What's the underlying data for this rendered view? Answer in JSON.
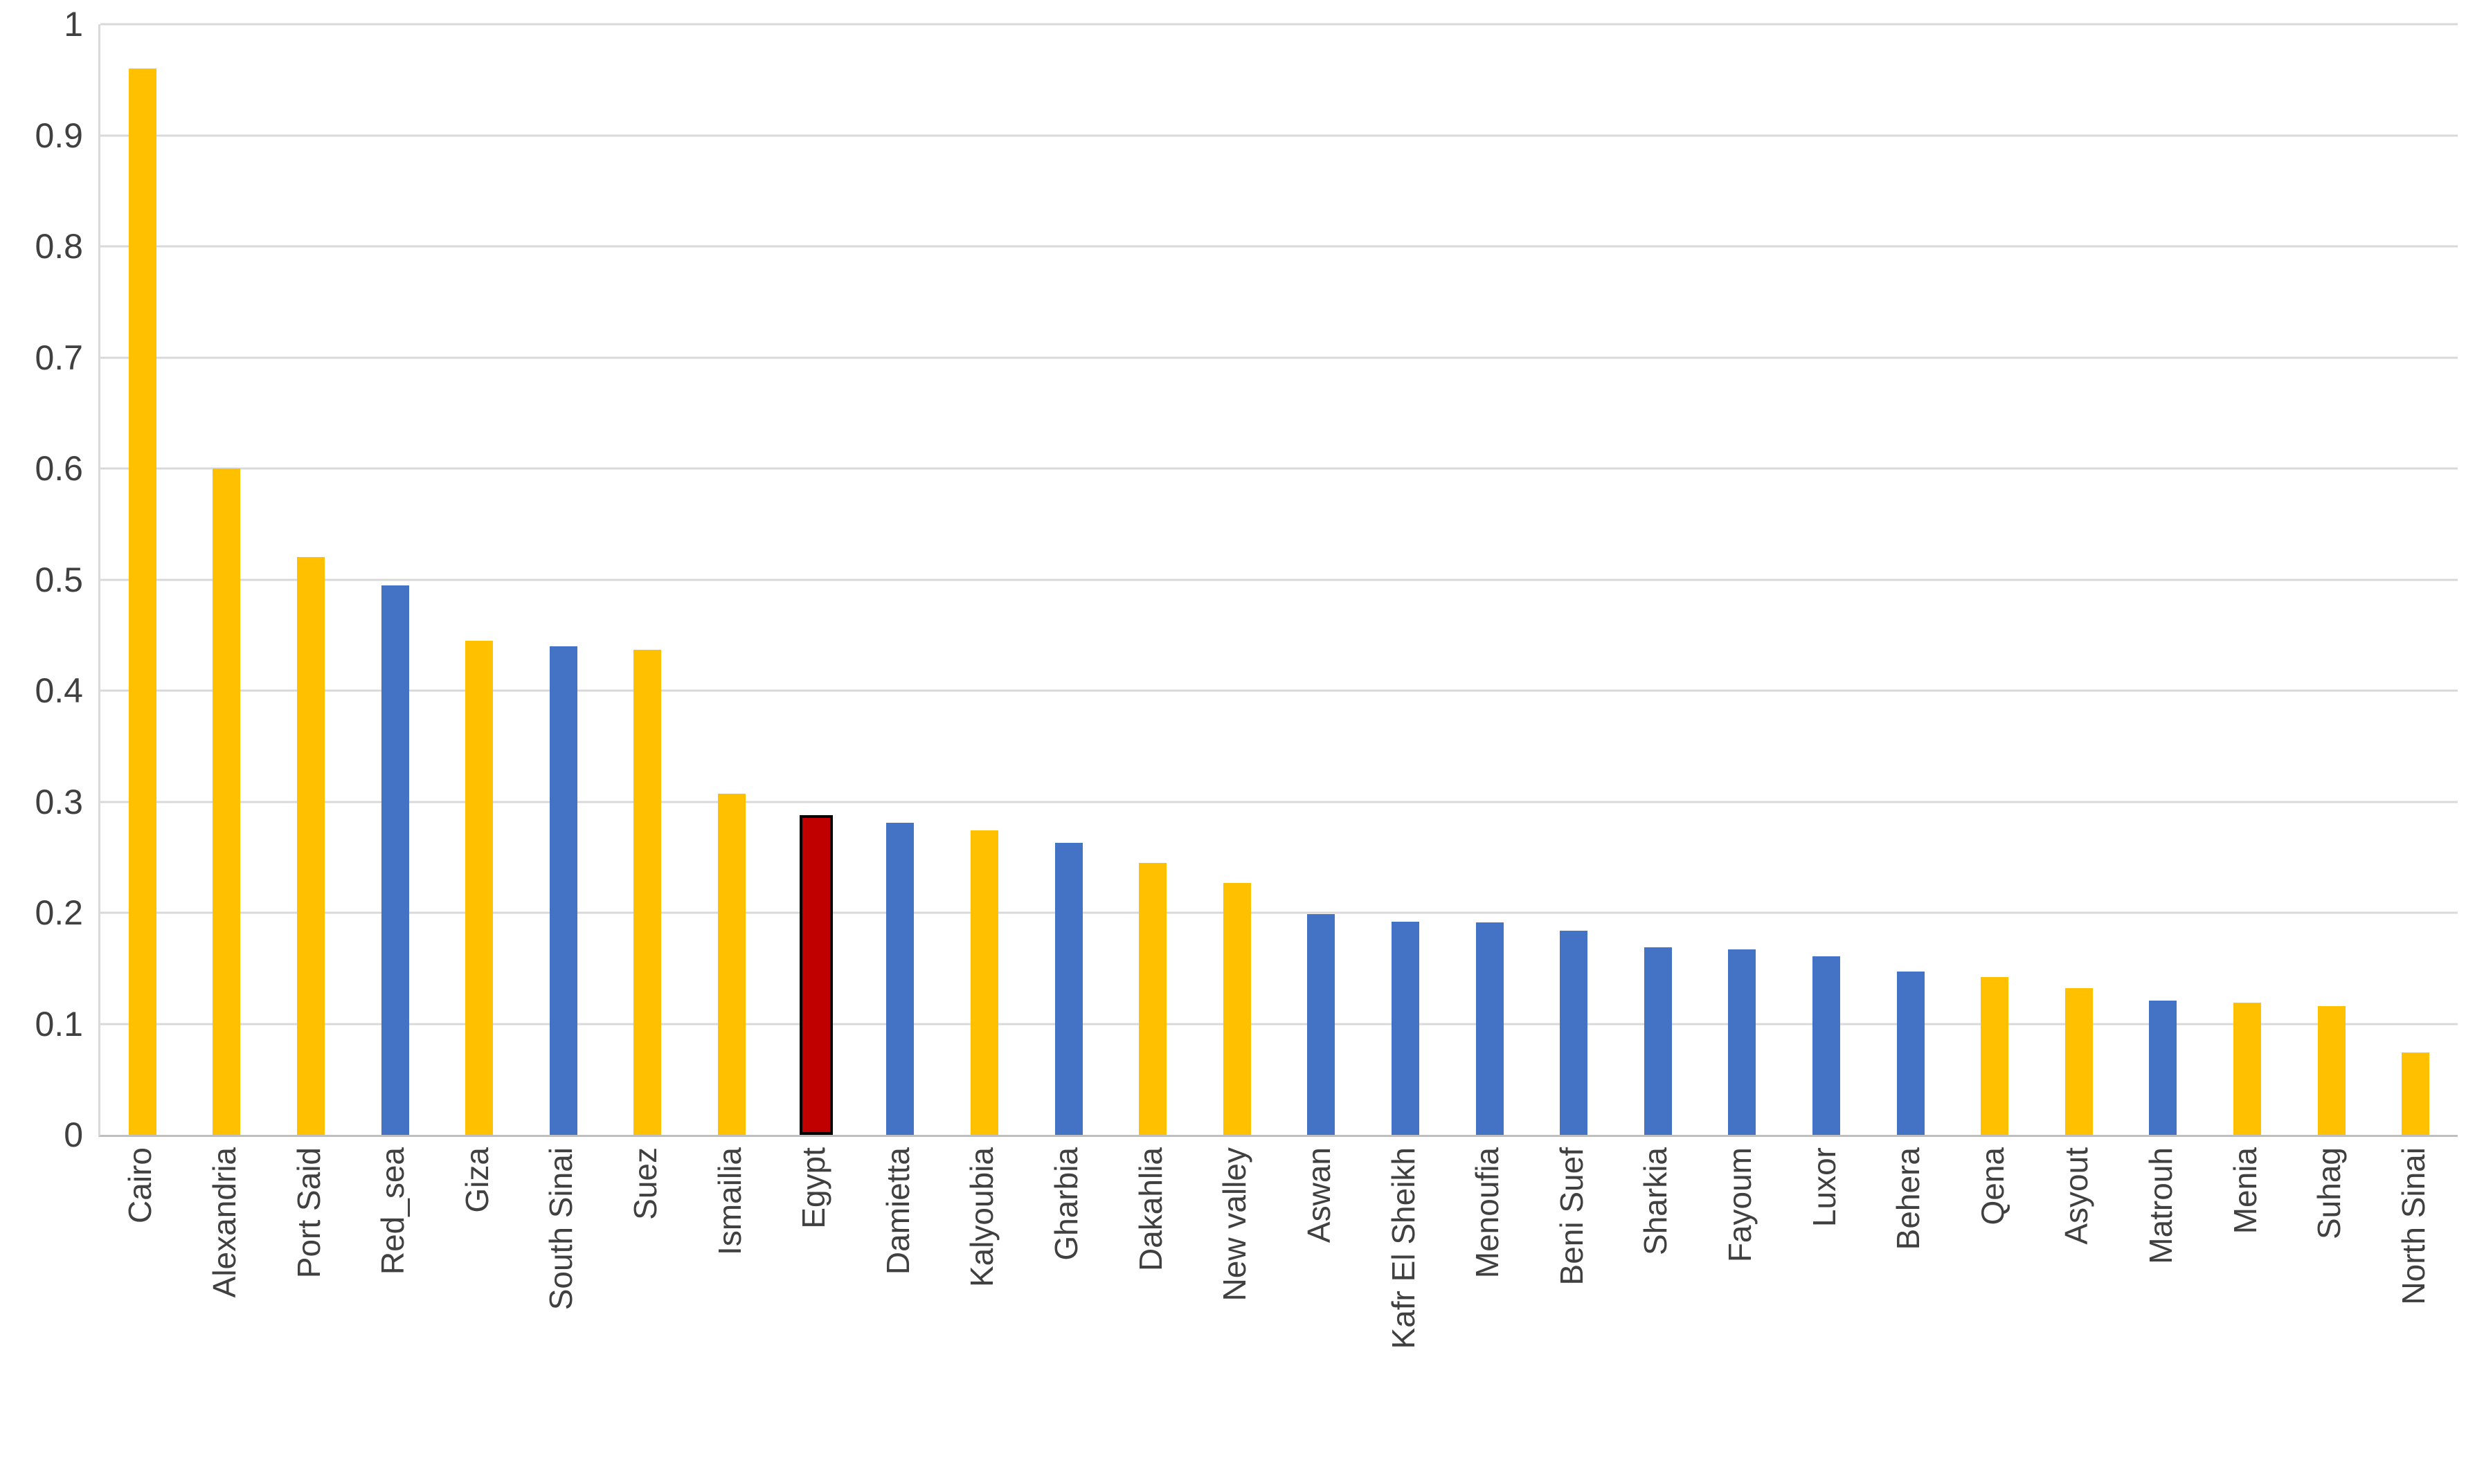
{
  "chart_data": {
    "type": "bar",
    "title": "",
    "xlabel": "",
    "ylabel": "",
    "grid": "horizontal",
    "legend": "none",
    "ylim": [
      0,
      1
    ],
    "y_ticks": [
      0,
      0.1,
      0.2,
      0.3,
      0.4,
      0.5,
      0.6,
      0.7,
      0.8,
      0.9,
      1
    ],
    "y_tick_labels": [
      "0",
      "0.1",
      "0.2",
      "0.3",
      "0.4",
      "0.5",
      "0.6",
      "0.7",
      "0.8",
      "0.9",
      "1"
    ],
    "categories": [
      "Cairo",
      "Alexandria",
      "Port Said",
      "Red_sea",
      "Giza",
      "South Sinai",
      "Suez",
      "Ismailia",
      "Egypt",
      "Damietta",
      "Kalyoubia",
      "Gharbia",
      "Dakahlia",
      "New valley",
      "Aswan",
      "Kafr El Sheikh",
      "Menoufia",
      "Beni Suef",
      "Sharkia",
      "Fayoum",
      "Luxor",
      "Behera",
      "Qena",
      "Asyout",
      "Matrouh",
      "Menia",
      "Suhag",
      "North Sinai"
    ],
    "values": [
      0.96,
      0.6,
      0.52,
      0.495,
      0.445,
      0.44,
      0.437,
      0.307,
      0.283,
      0.281,
      0.274,
      0.263,
      0.245,
      0.227,
      0.199,
      0.192,
      0.191,
      0.184,
      0.169,
      0.167,
      0.161,
      0.147,
      0.142,
      0.132,
      0.121,
      0.119,
      0.116,
      0.074
    ],
    "bar_colors": [
      "gold",
      "gold",
      "gold",
      "blue",
      "gold",
      "blue",
      "gold",
      "gold",
      "red",
      "blue",
      "gold",
      "blue",
      "gold",
      "gold",
      "blue",
      "blue",
      "blue",
      "blue",
      "blue",
      "blue",
      "blue",
      "blue",
      "gold",
      "gold",
      "blue",
      "gold",
      "gold",
      "gold"
    ],
    "palette": {
      "gold": "#FFC000",
      "blue": "#4472C4",
      "red": "#C00000",
      "red_border": "#000000"
    }
  },
  "colors": {
    "background": "#FFFFFF",
    "gridline": "#D9D9D9",
    "axis_line": "#BFBFBF",
    "axis_text": "#404040"
  }
}
